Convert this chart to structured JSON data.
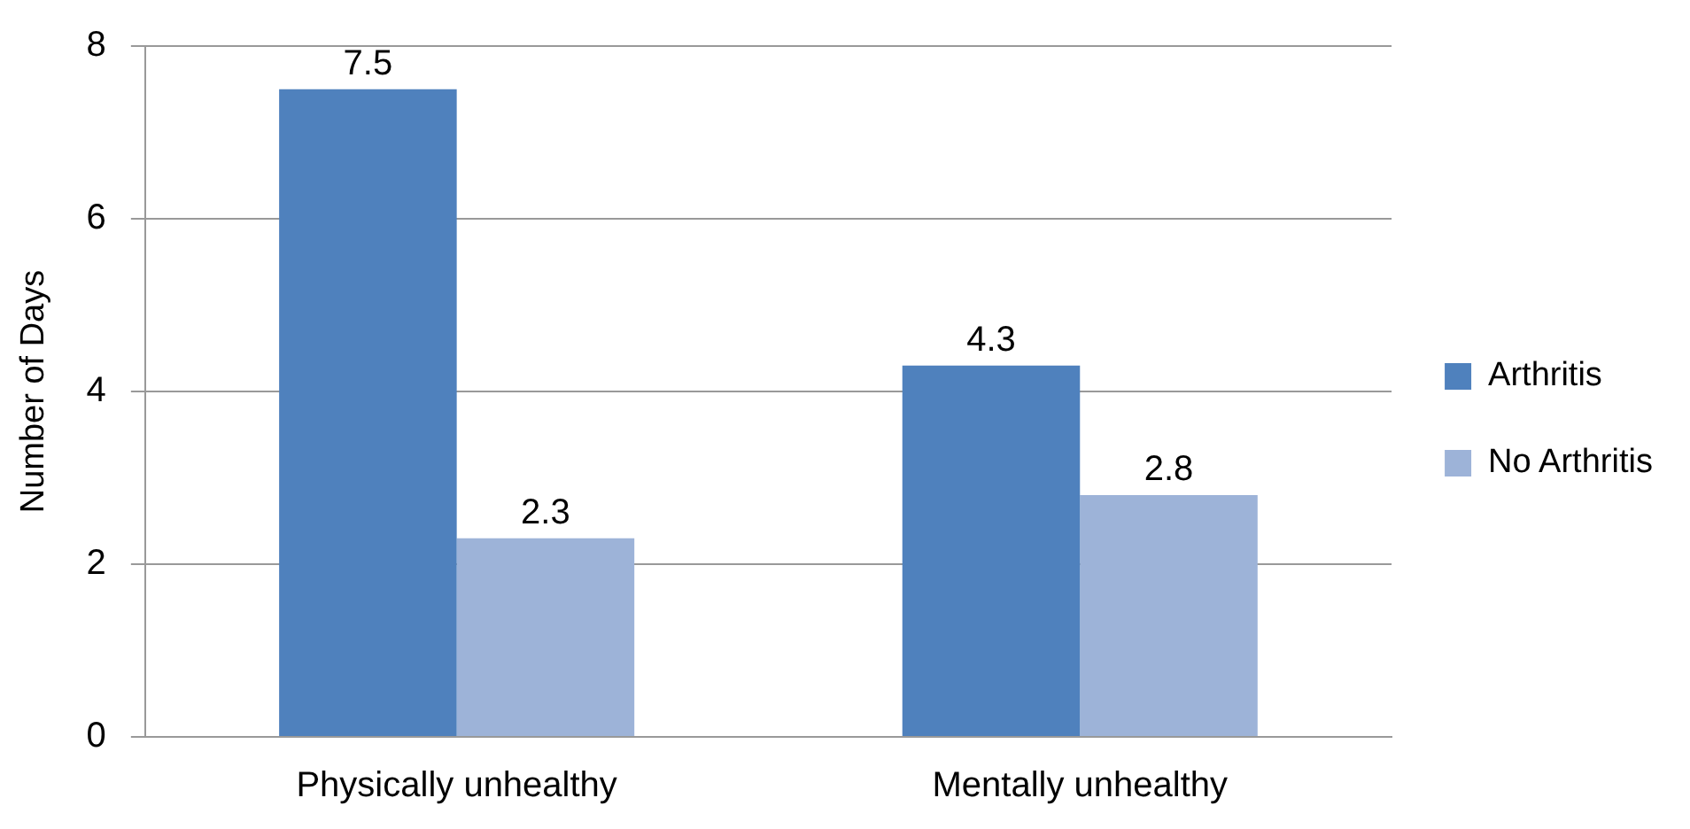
{
  "chart_data": {
    "type": "bar",
    "ylabel": "Number of Days",
    "categories": [
      "Physically unhealthy",
      "Mentally unhealthy"
    ],
    "series": [
      {
        "name": "Arthritis",
        "color": "#4f81bd",
        "values": [
          7.5,
          4.3
        ]
      },
      {
        "name": "No Arthritis",
        "color": "#9db3d8",
        "values": [
          2.3,
          2.8
        ]
      }
    ],
    "ylim": [
      0,
      8
    ],
    "yticks": [
      0,
      2,
      4,
      6,
      8
    ],
    "grid": "y",
    "legend": "right",
    "data_labels": true
  }
}
